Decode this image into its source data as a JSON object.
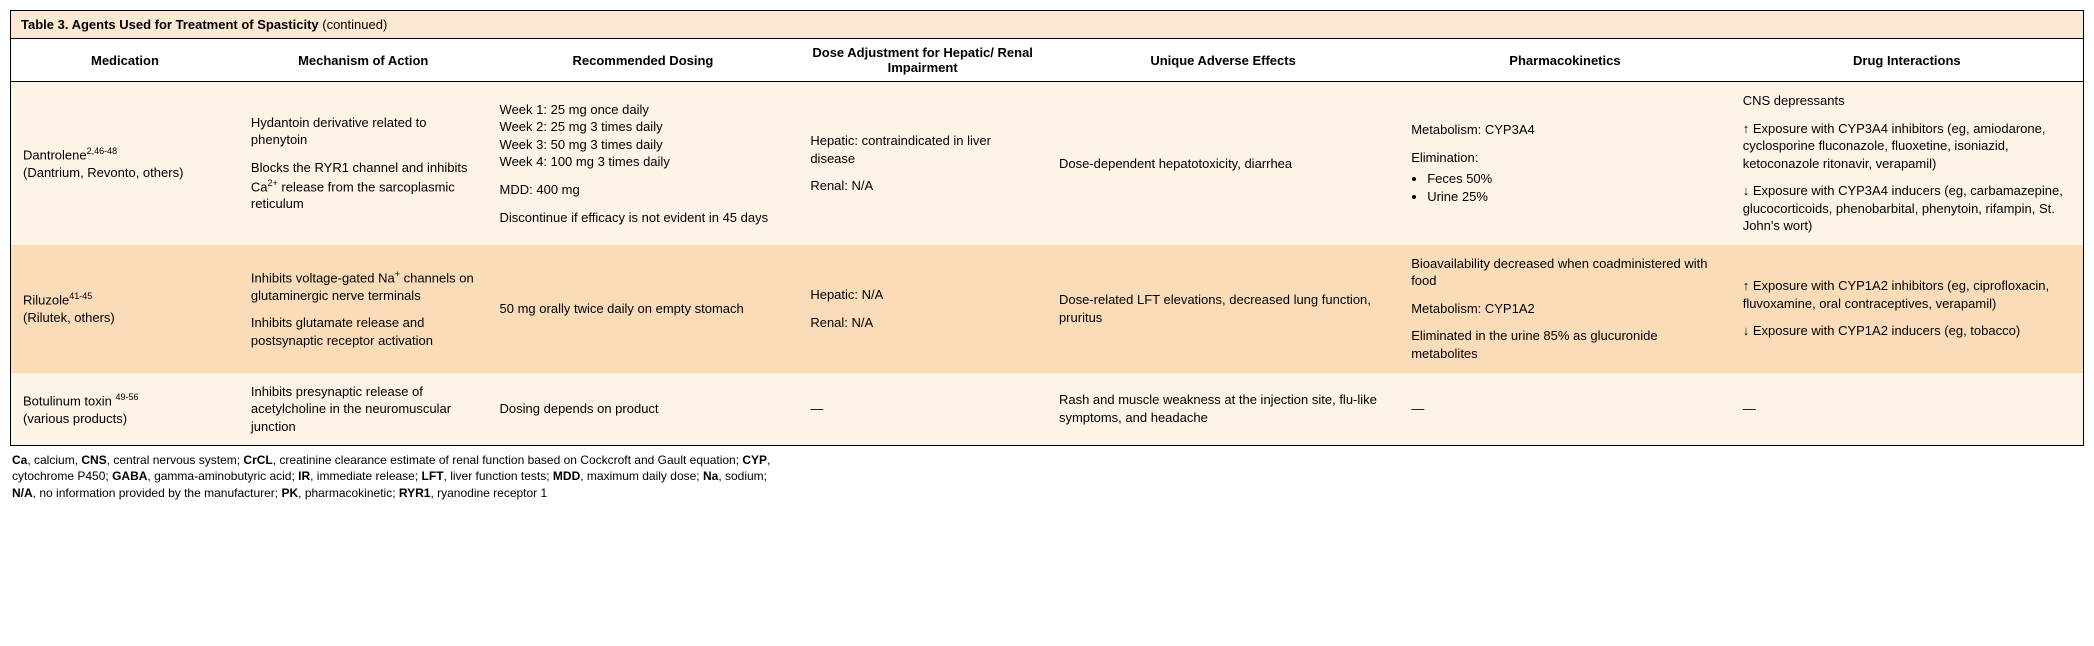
{
  "title": {
    "main": "Table 3. Agents Used for Treatment of Spasticity",
    "suffix": " (continued)"
  },
  "headers": {
    "medication": "Medication",
    "mechanism": "Mechanism of Action",
    "dosing": "Recommended Dosing",
    "adjustment": "Dose Adjustment for Hepatic/ Renal Impairment",
    "adverse": "Unique Adverse Effects",
    "pk": "Pharmacokinetics",
    "interactions": "Drug Interactions"
  },
  "rows": {
    "dantrolene": {
      "med_name": "Dantrolene",
      "med_refs": "2,46-48",
      "med_brands": "(Dantrium, Revonto, others)",
      "mech_p1": "Hydantoin derivative related to phenytoin",
      "mech_p2a": "Blocks the RYR1 channel and inhibits Ca",
      "mech_p2sup": "2+",
      "mech_p2b": " release from the sarcoplasmic reticulum",
      "dose_w1": "Week 1: 25 mg once daily",
      "dose_w2": "Week 2: 25 mg 3 times daily",
      "dose_w3": "Week 3: 50 mg 3 times daily",
      "dose_w4": "Week 4: 100 mg 3 times daily",
      "dose_mdd": "MDD: 400 mg",
      "dose_disc": "Discontinue if efficacy is not evident in 45 days",
      "adj_h": "Hepatic: contraindicated in liver disease",
      "adj_r": "Renal: N/A",
      "adverse": "Dose-dependent hepatotoxicity, diarrhea",
      "pk_met": "Metabolism: CYP3A4",
      "pk_elim": "Elimination:",
      "pk_b1": "Feces 50%",
      "pk_b2": "Urine 25%",
      "int_p1": "CNS depressants",
      "int_p2": "↑  Exposure with CYP3A4 inhibitors (eg, amiodarone, cyclosporine fluconazole, fluoxetine, isoniazid, ketoconazole ritonavir, verapamil)",
      "int_p3": "↓  Exposure with CYP3A4 inducers (eg, carbamazepine, glucocorticoids, phenobarbital, phenytoin, rifampin, St. John's wort)"
    },
    "riluzole": {
      "med_name": "Riluzole",
      "med_refs": "41-45",
      "med_brands": "(Rilutek, others)",
      "mech_p1a": "Inhibits voltage-gated Na",
      "mech_p1sup": "+",
      "mech_p1b": " channels on glutaminergic nerve terminals",
      "mech_p2": "Inhibits glutamate release and postsynaptic receptor activation",
      "dose": "50 mg orally twice daily on empty stomach",
      "adj_h": "Hepatic: N/A",
      "adj_r": "Renal: N/A",
      "adverse": "Dose-related LFT elevations, decreased lung function, pruritus",
      "pk_p1": "Bioavailability decreased when coadministered with food",
      "pk_p2": "Metabolism: CYP1A2",
      "pk_p3": "Eliminated in the urine 85% as glucuronide metabolites",
      "int_p1": "↑ Exposure with CYP1A2 inhibitors (eg, ciprofloxacin, fluvoxamine, oral contraceptives, verapamil)",
      "int_p2": "↓ Exposure with CYP1A2 inducers (eg, tobacco)"
    },
    "botox": {
      "med_name": "Botulinum toxin ",
      "med_refs": "49-56",
      "med_brands": "(various products)",
      "mech": "Inhibits presynaptic release of acetylcholine in the neuromuscular junction",
      "dose": "Dosing depends on product",
      "adj": "—",
      "adverse": "Rash and muscle weakness at the injection site, flu-like symptoms, and headache",
      "pk": "—",
      "int": "—"
    }
  },
  "footnote": {
    "parts": [
      {
        "b": "Ca"
      },
      {
        "t": ", calcium, "
      },
      {
        "b": "CNS"
      },
      {
        "t": ", central nervous system; "
      },
      {
        "b": "CrCL"
      },
      {
        "t": ", creatinine clearance estimate of renal function based on Cockcroft and Gault equation; "
      },
      {
        "b": "CYP"
      },
      {
        "t": ", cytochrome P450; "
      },
      {
        "b": "GABA"
      },
      {
        "t": ", gamma-aminobutyric acid; "
      },
      {
        "b": "IR"
      },
      {
        "t": ", immediate release; "
      },
      {
        "b": "LFT"
      },
      {
        "t": ", liver function tests; "
      },
      {
        "b": "MDD"
      },
      {
        "t": ", maximum daily dose; "
      },
      {
        "b": "Na"
      },
      {
        "t": ", sodium; "
      },
      {
        "b": "N/A"
      },
      {
        "t": ", no information provided by the manufacturer; "
      },
      {
        "b": "PK"
      },
      {
        "t": ", pharmacokinetic; "
      },
      {
        "b": "RYR1"
      },
      {
        "t": ", ryanodine receptor 1"
      }
    ]
  }
}
